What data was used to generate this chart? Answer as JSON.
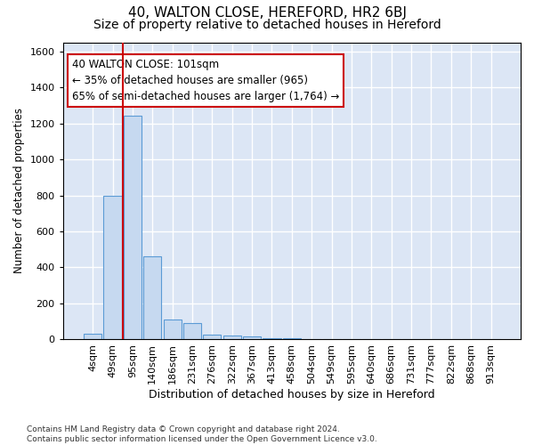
{
  "title_line1": "40, WALTON CLOSE, HEREFORD, HR2 6BJ",
  "title_line2": "Size of property relative to detached houses in Hereford",
  "xlabel": "Distribution of detached houses by size in Hereford",
  "ylabel": "Number of detached properties",
  "footnote": "Contains HM Land Registry data © Crown copyright and database right 2024.\nContains public sector information licensed under the Open Government Licence v3.0.",
  "bar_labels": [
    "4sqm",
    "49sqm",
    "95sqm",
    "140sqm",
    "186sqm",
    "231sqm",
    "276sqm",
    "322sqm",
    "367sqm",
    "413sqm",
    "458sqm",
    "504sqm",
    "549sqm",
    "595sqm",
    "640sqm",
    "686sqm",
    "731sqm",
    "777sqm",
    "822sqm",
    "868sqm",
    "913sqm"
  ],
  "bar_values": [
    30,
    800,
    1240,
    460,
    110,
    90,
    25,
    20,
    15,
    5,
    5,
    0,
    0,
    0,
    0,
    0,
    0,
    0,
    0,
    0,
    0
  ],
  "bar_color": "#c6d9f0",
  "bar_edge_color": "#5b9bd5",
  "vline_color": "#cc0000",
  "annotation_text": "40 WALTON CLOSE: 101sqm\n← 35% of detached houses are smaller (965)\n65% of semi-detached houses are larger (1,764) →",
  "annotation_box_color": "white",
  "annotation_box_edge": "#cc0000",
  "ylim": [
    0,
    1650
  ],
  "yticks": [
    0,
    200,
    400,
    600,
    800,
    1000,
    1200,
    1400,
    1600
  ],
  "bg_color": "#dce6f5",
  "grid_color": "white",
  "title1_fontsize": 11,
  "title2_fontsize": 10,
  "xlabel_fontsize": 9,
  "ylabel_fontsize": 8.5,
  "tick_fontsize": 8
}
